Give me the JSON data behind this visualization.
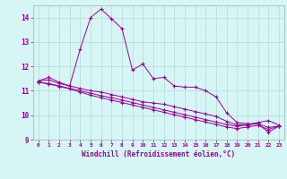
{
  "xlabel": "Windchill (Refroidissement éolien,°C)",
  "bg_color": "#d6f5f5",
  "grid_color": "#b8dede",
  "line_color": "#990099",
  "xlim": [
    -0.5,
    23.5
  ],
  "ylim": [
    9.0,
    14.5
  ],
  "yticks": [
    9,
    10,
    11,
    12,
    13,
    14
  ],
  "xticks": [
    0,
    1,
    2,
    3,
    4,
    5,
    6,
    7,
    8,
    9,
    10,
    11,
    12,
    13,
    14,
    15,
    16,
    17,
    18,
    19,
    20,
    21,
    22,
    23
  ],
  "hours": [
    0,
    1,
    2,
    3,
    4,
    5,
    6,
    7,
    8,
    9,
    10,
    11,
    12,
    13,
    14,
    15,
    16,
    17,
    18,
    19,
    20,
    21,
    22,
    23
  ],
  "line1": [
    11.4,
    11.55,
    11.35,
    11.2,
    12.7,
    14.0,
    14.35,
    13.95,
    13.55,
    11.85,
    12.1,
    11.5,
    11.55,
    11.2,
    11.15,
    11.15,
    11.0,
    10.75,
    10.1,
    9.7,
    9.65,
    9.65,
    9.3,
    9.55
  ],
  "line2": [
    11.4,
    11.45,
    11.3,
    11.2,
    11.1,
    11.0,
    10.95,
    10.85,
    10.75,
    10.65,
    10.55,
    10.5,
    10.45,
    10.35,
    10.25,
    10.15,
    10.05,
    9.95,
    9.75,
    9.6,
    9.62,
    9.7,
    9.78,
    9.6
  ],
  "line3": [
    11.35,
    11.3,
    11.2,
    11.1,
    11.0,
    10.9,
    10.8,
    10.72,
    10.62,
    10.52,
    10.42,
    10.32,
    10.22,
    10.12,
    10.02,
    9.92,
    9.82,
    9.72,
    9.62,
    9.55,
    9.6,
    9.65,
    9.5,
    9.55
  ],
  "line4": [
    11.35,
    11.28,
    11.18,
    11.08,
    10.95,
    10.82,
    10.72,
    10.62,
    10.52,
    10.42,
    10.32,
    10.22,
    10.12,
    10.02,
    9.92,
    9.82,
    9.72,
    9.62,
    9.52,
    9.45,
    9.52,
    9.58,
    9.42,
    9.55
  ]
}
